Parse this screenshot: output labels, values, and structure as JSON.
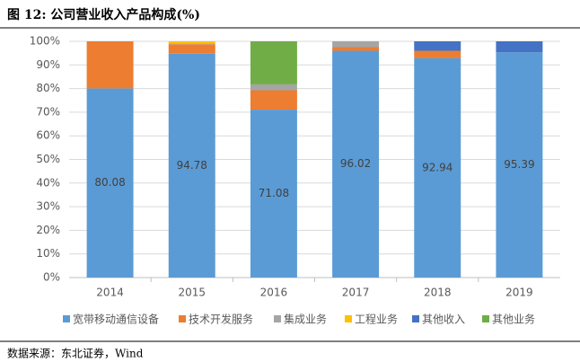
{
  "chart_data": {
    "type": "stacked_bar",
    "title": "图 12: 公司营业收入产品构成(%)",
    "source": "数据来源：东北证券，Wind",
    "categories": [
      "2014",
      "2015",
      "2016",
      "2017",
      "2018",
      "2019"
    ],
    "series": [
      {
        "name": "宽带移动通信设备",
        "color": "#5b9bd5",
        "values": [
          80.08,
          94.78,
          71.08,
          96.02,
          92.94,
          95.39
        ]
      },
      {
        "name": "技术开发服务",
        "color": "#ed7d31",
        "values": [
          19.92,
          4.0,
          8.2,
          1.5,
          3.06,
          0
        ]
      },
      {
        "name": "集成业务",
        "color": "#a5a5a5",
        "values": [
          0,
          0.3,
          2.5,
          2.48,
          0,
          0
        ]
      },
      {
        "name": "工程业务",
        "color": "#ffc000",
        "values": [
          0,
          0.92,
          0,
          0,
          0,
          0
        ]
      },
      {
        "name": "其他收入",
        "color": "#4472c4",
        "values": [
          0,
          0,
          0,
          0,
          4.0,
          4.61
        ]
      },
      {
        "name": "其他业务",
        "color": "#70ad47",
        "values": [
          0,
          0,
          18.22,
          0,
          0,
          0
        ]
      }
    ],
    "ylim": [
      0,
      100
    ],
    "yticks": [
      {
        "value": 0,
        "label": "0%"
      },
      {
        "value": 10,
        "label": "10%"
      },
      {
        "value": 20,
        "label": "20%"
      },
      {
        "value": 30,
        "label": "30%"
      },
      {
        "value": 40,
        "label": "40%"
      },
      {
        "value": 50,
        "label": "50%"
      },
      {
        "value": 60,
        "label": "60%"
      },
      {
        "value": 70,
        "label": "70%"
      },
      {
        "value": 80,
        "label": "80%"
      },
      {
        "value": 90,
        "label": "90%"
      },
      {
        "value": 100,
        "label": "100%"
      }
    ],
    "grid": true,
    "legend": "bottom"
  }
}
